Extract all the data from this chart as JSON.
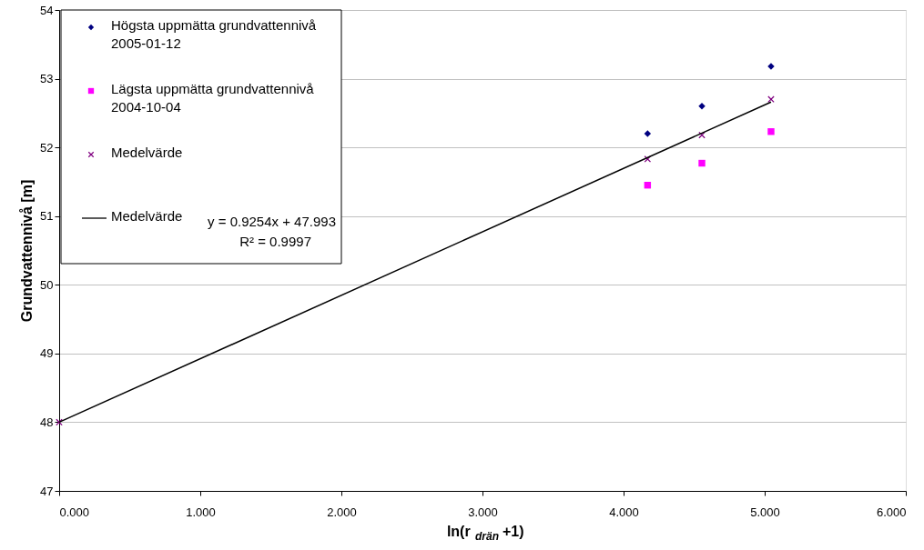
{
  "chart_data": {
    "type": "scatter",
    "xlabel": "ln(r$_{drän}$ +1)",
    "ylabel": "Grundvattennivå [m]",
    "xlim": [
      0,
      6
    ],
    "ylim": [
      47,
      54
    ],
    "xticks": [
      {
        "value": 0,
        "label": "0.000"
      },
      {
        "value": 1,
        "label": "1.000"
      },
      {
        "value": 2,
        "label": "2.000"
      },
      {
        "value": 3,
        "label": "3.000"
      },
      {
        "value": 4,
        "label": "4.000"
      },
      {
        "value": 5,
        "label": "5.000"
      },
      {
        "value": 6,
        "label": "6.000"
      }
    ],
    "yticks": [
      47,
      48,
      49,
      50,
      51,
      52,
      53,
      54
    ],
    "grid": "y",
    "legend": "top left",
    "series": [
      {
        "name": "Högsta uppmätta grundvattennivå\n2005-01-12",
        "color": "#000080",
        "marker": "diamond",
        "x": [
          4.17,
          4.555,
          5.045
        ],
        "values": [
          52.2,
          52.6,
          53.18
        ]
      },
      {
        "name": "Lägsta uppmätta grundvattennivå\n2004-10-04",
        "color": "#ff00ff",
        "marker": "square",
        "x": [
          4.17,
          4.555,
          5.045
        ],
        "values": [
          51.45,
          51.77,
          52.23
        ]
      },
      {
        "name": "Medelvärde",
        "color": "#800080",
        "marker": "cross",
        "x": [
          0,
          4.17,
          4.555,
          5.045
        ],
        "values": [
          48.0,
          51.83,
          52.18,
          52.7
        ]
      },
      {
        "name": "Medelvärde",
        "type": "line",
        "color": "#000000",
        "marker": "none",
        "line_style": "solid",
        "x": [
          0,
          5.045
        ],
        "values": [
          48.0,
          52.66
        ]
      }
    ],
    "annotations": [
      "y = 0.9254x + 47.993",
      "R² = 0.9997"
    ]
  }
}
